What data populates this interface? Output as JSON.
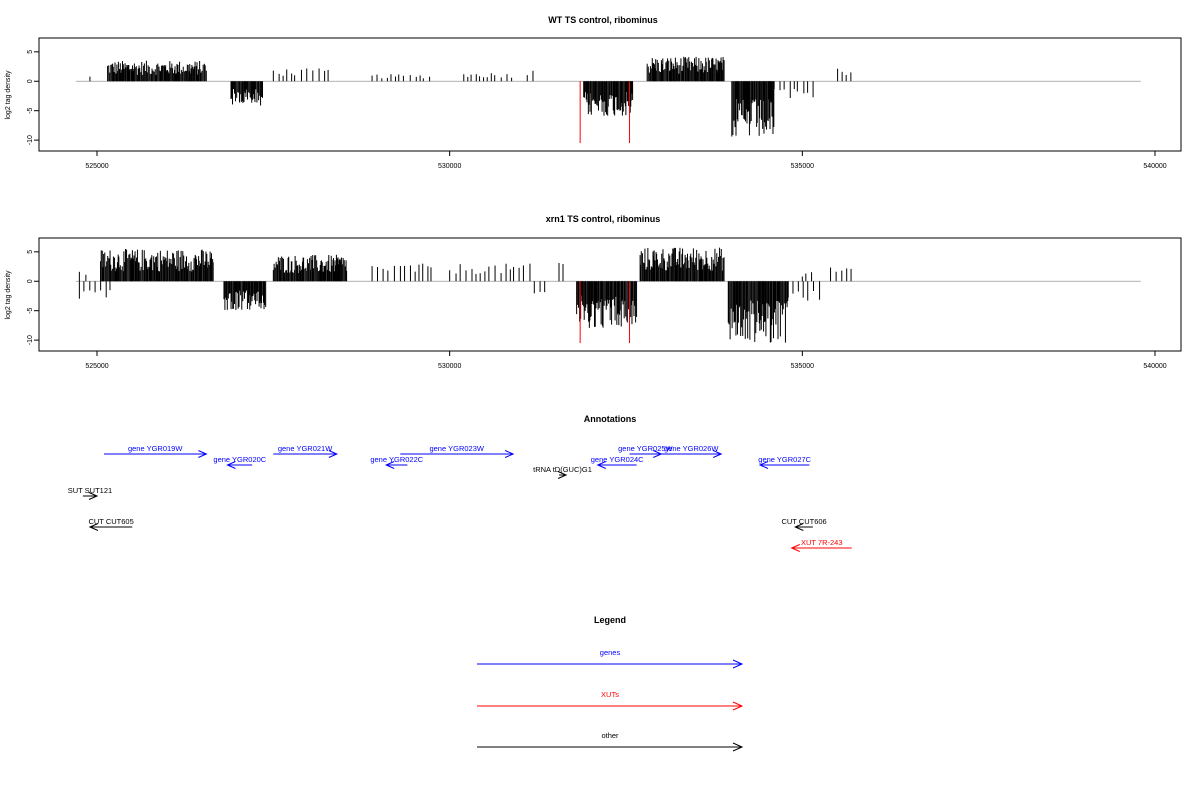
{
  "chart_data": [
    {
      "type": "bar",
      "title": "WT TS control, ribominus",
      "ylabel": "log2 tag density",
      "xlim": [
        524500,
        539800
      ],
      "ylim": [
        -11,
        6.5
      ],
      "x_ticks": [
        525000,
        530000,
        535000,
        540000
      ],
      "y_ticks": [
        -10,
        -5,
        0,
        5
      ],
      "segments": [
        {
          "strand": "plus",
          "x0": 524900,
          "x1": 524950,
          "max": 1,
          "style": "sparse"
        },
        {
          "strand": "plus",
          "x0": 525150,
          "x1": 526550,
          "max": 3.5,
          "style": "dense"
        },
        {
          "strand": "minus",
          "x0": 526900,
          "x1": 527350,
          "max": -4.2,
          "style": "dense"
        },
        {
          "strand": "plus",
          "x0": 527500,
          "x1": 528300,
          "max": 2.2,
          "style": "sparse"
        },
        {
          "strand": "plus",
          "x0": 528900,
          "x1": 529800,
          "max": 1.2,
          "style": "sparse"
        },
        {
          "strand": "plus",
          "x0": 530200,
          "x1": 530900,
          "max": 1.5,
          "style": "sparse"
        },
        {
          "strand": "plus",
          "x0": 531100,
          "x1": 531200,
          "max": 2,
          "style": "sparse"
        },
        {
          "strand": "minus",
          "x0": 531900,
          "x1": 532600,
          "max": -6,
          "style": "dense"
        },
        {
          "strand": "plus",
          "x0": 532800,
          "x1": 533900,
          "max": 4.2,
          "style": "dense"
        },
        {
          "strand": "minus",
          "x0": 534000,
          "x1": 534600,
          "max": -10,
          "style": "dense"
        },
        {
          "strand": "minus",
          "x0": 534600,
          "x1": 535200,
          "max": -3,
          "style": "sparse"
        },
        {
          "strand": "plus",
          "x0": 535500,
          "x1": 535700,
          "max": 2.2,
          "style": "sparse"
        }
      ],
      "highlight": {
        "color": "#ff0000",
        "x": [
          531850,
          532550
        ],
        "y": -10.5
      }
    },
    {
      "type": "bar",
      "title": "xrn1 TS control, ribominus",
      "ylabel": "log2 tag density",
      "xlim": [
        524500,
        539800
      ],
      "ylim": [
        -11,
        6.5
      ],
      "x_ticks": [
        525000,
        530000,
        535000,
        540000
      ],
      "y_ticks": [
        -10,
        -5,
        0,
        5
      ],
      "segments": [
        {
          "strand": "plus",
          "x0": 524750,
          "x1": 524900,
          "max": 2,
          "style": "sparse"
        },
        {
          "strand": "minus",
          "x0": 524750,
          "x1": 525200,
          "max": -3,
          "style": "sparse"
        },
        {
          "strand": "plus",
          "x0": 525050,
          "x1": 526650,
          "max": 5.5,
          "style": "dense"
        },
        {
          "strand": "minus",
          "x0": 526800,
          "x1": 527400,
          "max": -5,
          "style": "dense"
        },
        {
          "strand": "plus",
          "x0": 527500,
          "x1": 528550,
          "max": 4.5,
          "style": "dense"
        },
        {
          "strand": "plus",
          "x0": 528900,
          "x1": 529800,
          "max": 3,
          "style": "sparse"
        },
        {
          "strand": "plus",
          "x0": 530000,
          "x1": 531200,
          "max": 3,
          "style": "sparse"
        },
        {
          "strand": "minus",
          "x0": 531200,
          "x1": 531400,
          "max": -2.5,
          "style": "sparse"
        },
        {
          "strand": "plus",
          "x0": 531550,
          "x1": 531650,
          "max": 4,
          "style": "sparse"
        },
        {
          "strand": "minus",
          "x0": 531800,
          "x1": 532650,
          "max": -8,
          "style": "dense"
        },
        {
          "strand": "plus",
          "x0": 532700,
          "x1": 533900,
          "max": 5.8,
          "style": "dense"
        },
        {
          "strand": "minus",
          "x0": 533950,
          "x1": 534800,
          "max": -10.5,
          "style": "dense"
        },
        {
          "strand": "minus",
          "x0": 534800,
          "x1": 535300,
          "max": -3.5,
          "style": "sparse"
        },
        {
          "strand": "plus",
          "x0": 535000,
          "x1": 535150,
          "max": 2,
          "style": "sparse"
        },
        {
          "strand": "plus",
          "x0": 535400,
          "x1": 535700,
          "max": 2.5,
          "style": "sparse"
        }
      ],
      "highlight": {
        "color": "#ff0000",
        "x": [
          531850,
          532550
        ],
        "y": -10.5
      }
    }
  ],
  "annotations": {
    "title": "Annotations",
    "features": [
      {
        "label": "gene YGR019W",
        "color": "#0000ff",
        "x0": 525100,
        "x1": 526550,
        "dir": "right",
        "row": 0
      },
      {
        "label": "gene YGR020C",
        "color": "#0000ff",
        "x0": 526850,
        "x1": 527200,
        "dir": "left",
        "row": 1
      },
      {
        "label": "gene YGR021W",
        "color": "#0000ff",
        "x0": 527500,
        "x1": 528400,
        "dir": "right",
        "row": 0
      },
      {
        "label": "gene YGR022C",
        "color": "#0000ff",
        "x0": 529100,
        "x1": 529400,
        "dir": "left",
        "row": 1
      },
      {
        "label": "gene YGR023W",
        "color": "#0000ff",
        "x0": 529300,
        "x1": 530900,
        "dir": "right",
        "row": 0
      },
      {
        "label": "tRNA tD(GUC)G1",
        "color": "#000000",
        "x0": 531550,
        "x1": 531650,
        "dir": "right",
        "row": 2
      },
      {
        "label": "gene YGR024C",
        "color": "#0000ff",
        "x0": 532100,
        "x1": 532650,
        "dir": "left",
        "row": 1
      },
      {
        "label": "gene YGR025W",
        "color": "#0000ff",
        "x0": 532550,
        "x1": 533000,
        "dir": "right",
        "row": 0
      },
      {
        "label": "gene YGR026W",
        "color": "#0000ff",
        "x0": 533000,
        "x1": 533850,
        "dir": "right",
        "row": 0
      },
      {
        "label": "gene YGR027C",
        "color": "#0000ff",
        "x0": 534400,
        "x1": 535100,
        "dir": "left",
        "row": 1
      },
      {
        "label": "SUT SUT121",
        "color": "#000000",
        "x0": 524800,
        "x1": 525000,
        "dir": "right",
        "row": 3
      },
      {
        "label": "CUT CUT605",
        "color": "#000000",
        "x0": 524900,
        "x1": 525500,
        "dir": "left",
        "row": 4
      },
      {
        "label": "CUT CUT606",
        "color": "#000000",
        "x0": 534900,
        "x1": 535150,
        "dir": "left",
        "row": 4
      },
      {
        "label": "XUT 7R-243",
        "color": "#ff0000",
        "x0": 534850,
        "x1": 535700,
        "dir": "left",
        "row": 5
      }
    ]
  },
  "legend": {
    "title": "Legend",
    "items": [
      {
        "label": "genes",
        "color": "#0000ff"
      },
      {
        "label": "XUTs",
        "color": "#ff0000"
      },
      {
        "label": "other",
        "color": "#000000"
      }
    ]
  }
}
